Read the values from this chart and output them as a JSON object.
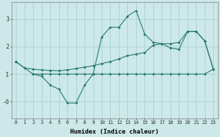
{
  "xlabel": "Humidex (Indice chaleur)",
  "bg_color": "#cce8e8",
  "grid_color": "#aad4d4",
  "line_color": "#2a7a70",
  "xlim": [
    -0.5,
    23.5
  ],
  "ylim": [
    -0.6,
    3.6
  ],
  "series1_x": [
    0,
    1,
    2,
    3,
    4,
    5,
    6,
    7,
    8,
    9,
    10,
    11,
    12,
    13,
    14,
    15,
    16,
    17,
    18,
    19,
    20,
    21,
    22,
    23
  ],
  "series1_y": [
    1.45,
    1.22,
    1.0,
    1.0,
    1.0,
    1.0,
    1.0,
    1.0,
    1.0,
    1.0,
    1.0,
    1.0,
    1.0,
    1.0,
    1.0,
    1.0,
    1.0,
    1.0,
    1.0,
    1.0,
    1.0,
    1.0,
    1.0,
    1.18
  ],
  "series2_x": [
    0,
    1,
    2,
    3,
    4,
    5,
    6,
    7,
    8,
    9,
    10,
    11,
    12,
    13,
    14,
    15,
    16,
    17,
    18,
    19,
    20,
    21,
    22,
    23
  ],
  "series2_y": [
    1.45,
    1.22,
    1.18,
    1.15,
    1.13,
    1.12,
    1.15,
    1.2,
    1.25,
    1.3,
    1.38,
    1.45,
    1.55,
    1.67,
    1.72,
    1.78,
    2.05,
    2.1,
    2.1,
    2.15,
    2.55,
    2.55,
    2.2,
    1.18
  ],
  "series3_x": [
    2,
    3,
    4,
    5,
    6,
    7,
    8,
    9,
    10,
    11,
    12,
    13,
    14,
    15,
    16,
    17,
    18,
    19,
    20,
    21,
    22,
    23
  ],
  "series3_y": [
    1.0,
    0.92,
    0.6,
    0.45,
    -0.05,
    -0.05,
    0.6,
    1.0,
    2.35,
    2.7,
    2.7,
    3.1,
    3.3,
    2.45,
    2.15,
    2.1,
    1.95,
    1.9,
    2.55,
    2.55,
    2.2,
    1.18
  ]
}
